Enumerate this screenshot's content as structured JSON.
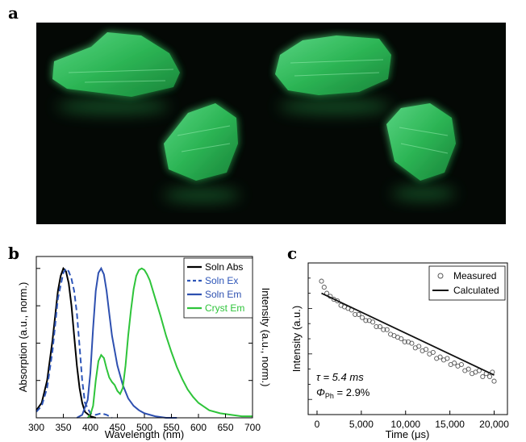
{
  "panels": {
    "a": "a",
    "b": "b",
    "c": "c"
  },
  "colors": {
    "soln_abs": "#000000",
    "soln_ex": "#2d55b8",
    "soln_em": "#2e50b0",
    "cryst_em": "#2ec43a",
    "crystal_glow": "#37d266",
    "photo_bg": "#040805"
  },
  "photo": {
    "subject": "four green-glowing crystals",
    "icon": "crystal-photo"
  },
  "chart_data": [
    {
      "type": "line",
      "panel": "b",
      "xlabel": "Wavelength (nm)",
      "ylabel_left": "Absorption (a.u., norm.)",
      "ylabel_right": "Intensity (a.u., norm.)",
      "xlim": [
        300,
        700
      ],
      "ylim": [
        0,
        1.08
      ],
      "x_ticks": [
        "300",
        "350",
        "400",
        "450",
        "500",
        "550",
        "600",
        "650",
        "700"
      ],
      "legend_position": "top-right",
      "series": [
        {
          "name": "Soln Abs",
          "style": "solid",
          "color": "#000000",
          "x": [
            300,
            310,
            320,
            330,
            340,
            345,
            350,
            355,
            360,
            365,
            370,
            375,
            380,
            385,
            390,
            400,
            410
          ],
          "y": [
            0.05,
            0.1,
            0.25,
            0.52,
            0.85,
            0.95,
            1.0,
            0.98,
            0.9,
            0.75,
            0.55,
            0.35,
            0.2,
            0.1,
            0.04,
            0.01,
            0
          ]
        },
        {
          "name": "Soln Ex",
          "style": "dashed",
          "color": "#2d55b8",
          "x": [
            300,
            310,
            320,
            330,
            340,
            350,
            355,
            360,
            365,
            370,
            375,
            380,
            385,
            390,
            400,
            410,
            420,
            430,
            440
          ],
          "y": [
            0.04,
            0.08,
            0.2,
            0.45,
            0.8,
            0.97,
            1.0,
            0.98,
            0.93,
            0.85,
            0.7,
            0.48,
            0.25,
            0.1,
            0.03,
            0.02,
            0.03,
            0.02,
            0
          ]
        },
        {
          "name": "Soln Em",
          "style": "solid",
          "color": "#2e50b0",
          "x": [
            375,
            385,
            395,
            400,
            405,
            410,
            415,
            420,
            425,
            430,
            435,
            440,
            450,
            460,
            470,
            480,
            490,
            500,
            520,
            540,
            560
          ],
          "y": [
            0,
            0.02,
            0.12,
            0.3,
            0.6,
            0.85,
            0.97,
            1.0,
            0.96,
            0.85,
            0.7,
            0.55,
            0.35,
            0.22,
            0.13,
            0.08,
            0.05,
            0.03,
            0.01,
            0,
            0
          ]
        },
        {
          "name": "Cryst Em",
          "style": "solid",
          "color": "#2ec43a",
          "x": [
            395,
            400,
            405,
            410,
            415,
            420,
            425,
            430,
            435,
            440,
            445,
            450,
            455,
            460,
            465,
            470,
            475,
            480,
            485,
            490,
            495,
            500,
            505,
            510,
            520,
            530,
            540,
            550,
            560,
            570,
            580,
            590,
            600,
            620,
            640,
            660,
            680,
            700
          ],
          "y": [
            0,
            0.02,
            0.08,
            0.25,
            0.38,
            0.42,
            0.4,
            0.33,
            0.27,
            0.24,
            0.22,
            0.18,
            0.16,
            0.2,
            0.35,
            0.55,
            0.72,
            0.86,
            0.95,
            0.99,
            1.0,
            0.99,
            0.96,
            0.92,
            0.8,
            0.68,
            0.55,
            0.44,
            0.34,
            0.26,
            0.19,
            0.14,
            0.1,
            0.05,
            0.03,
            0.02,
            0.01,
            0.01
          ]
        }
      ]
    },
    {
      "type": "scatter",
      "panel": "c",
      "xlabel": "Time (μs)",
      "ylabel": "Intensity (a.u.)",
      "xlim": [
        -1000,
        21500
      ],
      "ylim": [
        0,
        1
      ],
      "x_ticks": [
        "0",
        "5,000",
        "10,000",
        "15,000",
        "20,000"
      ],
      "legend_position": "top-right",
      "annotation_tau": "τ = 5.4 ms",
      "annotation_phi_symbol": "Φ",
      "annotation_phi_sub": "Ph",
      "annotation_phi_value": " = 2.9%",
      "series": [
        {
          "name": "Measured",
          "marker": "open-circle",
          "x": [
            500,
            800,
            1100,
            1500,
            1900,
            2300,
            2700,
            3100,
            3500,
            3900,
            4300,
            4700,
            5100,
            5500,
            5900,
            6300,
            6700,
            7100,
            7500,
            7900,
            8300,
            8700,
            9100,
            9500,
            9900,
            10300,
            10700,
            11100,
            11500,
            11900,
            12300,
            12700,
            13100,
            13500,
            13900,
            14300,
            14700,
            15100,
            15500,
            15900,
            16300,
            16700,
            17100,
            17500,
            17900,
            18300,
            18700,
            19100,
            19500,
            19800,
            20000
          ],
          "y": [
            0.88,
            0.84,
            0.8,
            0.78,
            0.76,
            0.75,
            0.72,
            0.71,
            0.7,
            0.69,
            0.66,
            0.66,
            0.64,
            0.62,
            0.62,
            0.61,
            0.58,
            0.58,
            0.56,
            0.56,
            0.53,
            0.52,
            0.51,
            0.5,
            0.48,
            0.48,
            0.47,
            0.44,
            0.45,
            0.42,
            0.43,
            0.4,
            0.41,
            0.37,
            0.38,
            0.36,
            0.37,
            0.33,
            0.34,
            0.32,
            0.33,
            0.29,
            0.3,
            0.27,
            0.28,
            0.29,
            0.25,
            0.27,
            0.25,
            0.28,
            0.22
          ]
        },
        {
          "name": "Calculated",
          "style": "solid",
          "x": [
            500,
            20000
          ],
          "y": [
            0.8,
            0.26
          ]
        }
      ]
    }
  ]
}
